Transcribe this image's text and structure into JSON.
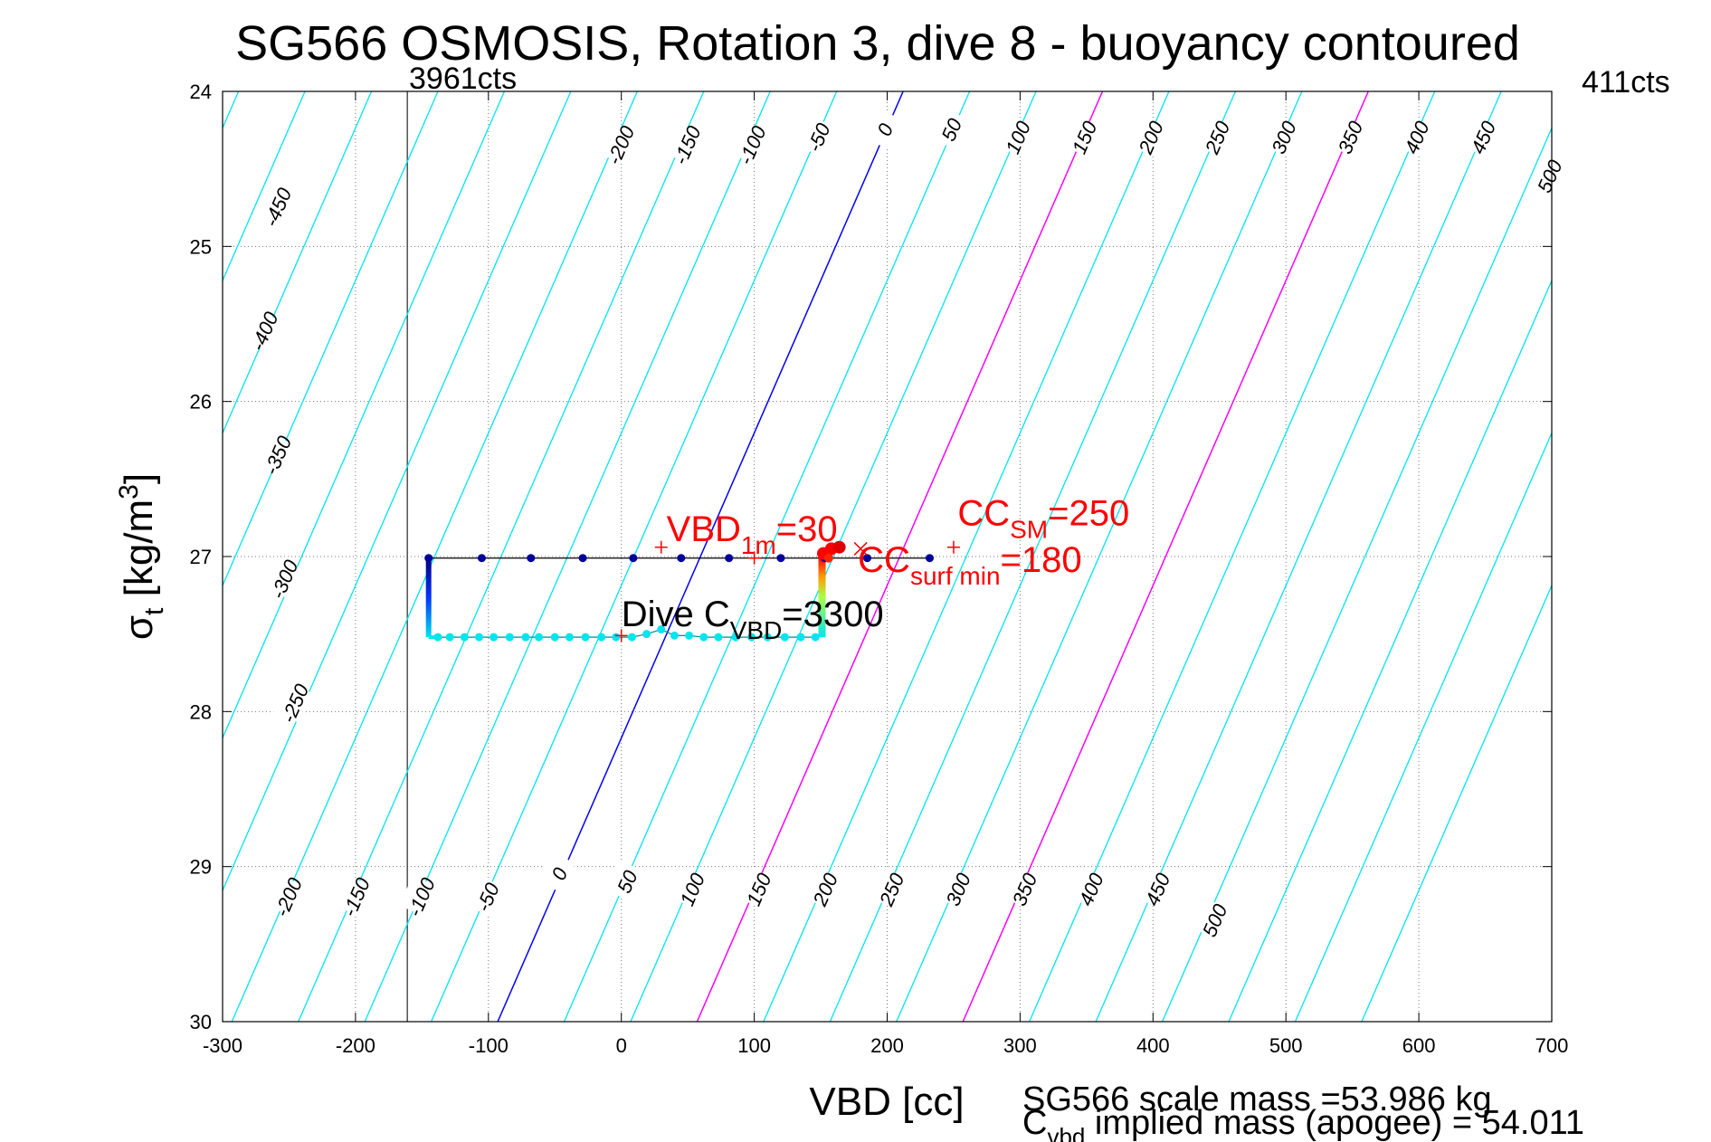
{
  "chart_data": {
    "type": "scatter",
    "title": "SG566 OSMOSIS, Rotation 3, dive 8 - buoyancy contoured",
    "xlabel": "VBD [cc]",
    "ylabel_main": "σ",
    "ylabel_sub": "t",
    "ylabel_units": " [kg/m",
    "ylabel_sup": "3",
    "ylabel_close": "]",
    "xlim": [
      -300,
      700
    ],
    "ylim": [
      24,
      30
    ],
    "y_reversed": true,
    "grid": "dotted",
    "x_ticks": [
      -300,
      -200,
      -100,
      0,
      100,
      200,
      300,
      400,
      500,
      600,
      700
    ],
    "y_ticks": [
      24,
      25,
      26,
      27,
      28,
      29,
      30
    ],
    "x_tick_labels": [
      "-300",
      "-200",
      "-100",
      "0",
      "100",
      "200",
      "300",
      "400",
      "500",
      "600",
      "700"
    ],
    "y_tick_labels": [
      "24",
      "25",
      "26",
      "27",
      "28",
      "29",
      "30"
    ],
    "limit_min_label": "3961cts",
    "limit_max_label": "411cts",
    "limit_min_vbd": -161,
    "contours": {
      "levels": [
        -500,
        -450,
        -400,
        -350,
        -300,
        -250,
        -200,
        -150,
        -100,
        -50,
        0,
        50,
        100,
        150,
        200,
        250,
        300,
        350,
        400,
        450,
        500,
        550,
        600,
        650
      ],
      "zero_level": 0,
      "zero_vbd_at_24": 212,
      "zero_vbd_at_30": -93,
      "level_spacing_vbd": 50,
      "colors": {
        "default": "#00e5ee",
        "zero": "#0000ff",
        "highlight": "#ff00ff"
      },
      "highlight_levels": [
        150,
        350
      ],
      "top_labels": [
        {
          "level": -450,
          "x": -260,
          "y": 24.8
        },
        {
          "level": -200,
          "x": -2,
          "y": 24.4
        },
        {
          "level": -150,
          "x": 48,
          "y": 24.4
        },
        {
          "level": -100,
          "x": 97,
          "y": 24.4
        },
        {
          "level": -50,
          "x": 147,
          "y": 24.35
        },
        {
          "level": 0,
          "x": 197,
          "y": 24.3
        },
        {
          "level": 50,
          "x": 247,
          "y": 24.3
        },
        {
          "level": 100,
          "x": 297,
          "y": 24.35
        },
        {
          "level": 150,
          "x": 347,
          "y": 24.35
        },
        {
          "level": 200,
          "x": 397,
          "y": 24.35
        },
        {
          "level": 250,
          "x": 447,
          "y": 24.35
        },
        {
          "level": 300,
          "x": 497,
          "y": 24.35
        },
        {
          "level": 350,
          "x": 547,
          "y": 24.35
        },
        {
          "level": 400,
          "x": 597,
          "y": 24.35
        },
        {
          "level": 450,
          "x": 647,
          "y": 24.35
        },
        {
          "level": 500,
          "x": 697,
          "y": 24.6
        },
        {
          "level": -400,
          "x": -270,
          "y": 25.6
        },
        {
          "level": -350,
          "x": -260,
          "y": 26.4
        },
        {
          "level": -300,
          "x": -255,
          "y": 27.2
        },
        {
          "level": -250,
          "x": -247,
          "y": 28.0
        }
      ],
      "bottom_labels": [
        {
          "level": -200,
          "x": -252,
          "y": 29.25
        },
        {
          "level": -150,
          "x": -201,
          "y": 29.25
        },
        {
          "level": -100,
          "x": -152,
          "y": 29.25
        },
        {
          "level": -50,
          "x": -102,
          "y": 29.25
        },
        {
          "level": 0,
          "x": -48,
          "y": 29.1
        },
        {
          "level": 50,
          "x": 3,
          "y": 29.15
        },
        {
          "level": 100,
          "x": 52,
          "y": 29.2
        },
        {
          "level": 150,
          "x": 102,
          "y": 29.2
        },
        {
          "level": 200,
          "x": 152,
          "y": 29.2
        },
        {
          "level": 250,
          "x": 202,
          "y": 29.2
        },
        {
          "level": 300,
          "x": 252,
          "y": 29.2
        },
        {
          "level": 350,
          "x": 302,
          "y": 29.2
        },
        {
          "level": 400,
          "x": 352,
          "y": 29.2
        },
        {
          "level": 450,
          "x": 402,
          "y": 29.2
        },
        {
          "level": 500,
          "x": 445,
          "y": 29.4
        }
      ]
    },
    "series": [
      {
        "name": "",
        "x": [
          -145,
          -105,
          -68,
          -29,
          9,
          45,
          81,
          120,
          153,
          185,
          232
        ],
        "y": [
          27.01,
          27.01,
          27.01,
          27.01,
          27.01,
          27.01,
          27.01,
          27.01,
          27.01,
          27.01,
          27.01
        ],
        "color": "#000099"
      },
      {
        "name": "",
        "x": [
          -138,
          -129,
          -118,
          -107,
          -96,
          -84,
          -72,
          -62,
          -50,
          -39,
          -27,
          -15,
          -4,
          8,
          19,
          30,
          40,
          51,
          62,
          73,
          86,
          98,
          110,
          123,
          135,
          146
        ],
        "y": [
          27.52,
          27.52,
          27.52,
          27.52,
          27.52,
          27.52,
          27.52,
          27.52,
          27.52,
          27.52,
          27.52,
          27.52,
          27.52,
          27.52,
          27.5,
          27.47,
          27.51,
          27.51,
          27.52,
          27.52,
          27.52,
          27.52,
          27.52,
          27.52,
          27.52,
          27.52
        ],
        "color": "#00e5ee"
      }
    ],
    "vertical_trace": {
      "x": -145,
      "y": [
        27.01,
        27.52
      ]
    },
    "right_trace": {
      "x": 151,
      "y": [
        27.0,
        27.52
      ]
    },
    "markers": [
      {
        "type": "plus",
        "x": 30,
        "y": 26.94,
        "color": "#ff0000"
      },
      {
        "type": "plus",
        "x": 250,
        "y": 26.94,
        "color": "#ff0000"
      },
      {
        "type": "cross",
        "x": 180,
        "y": 26.95,
        "color": "#ff0000"
      },
      {
        "type": "plus",
        "x": 100,
        "y": 27.01,
        "color": "#ff0000"
      },
      {
        "type": "plus",
        "x": 0,
        "y": 27.51,
        "color": "#ff0000"
      }
    ],
    "annotations": [
      {
        "id": "vbd1m",
        "main": "VBD",
        "sub": "1m",
        "tail": "=30",
        "x": 34,
        "y": 26.9,
        "color": "#ff0000"
      },
      {
        "id": "ccsm",
        "main": "CC",
        "sub": "SM",
        "tail": "=250",
        "x": 253,
        "y": 26.8,
        "color": "#ff0000"
      },
      {
        "id": "ccsurf",
        "main": "CC",
        "sub": "surf min",
        "tail": "=180",
        "x": 178,
        "y": 27.1,
        "color": "#ff0000"
      },
      {
        "id": "divec",
        "main": "Dive C",
        "sub": "VBD",
        "tail": "=3300",
        "x": 0,
        "y": 27.45,
        "color": "#000000"
      }
    ],
    "footer_line1": "SG566 scale mass =53.986 kg",
    "footer_line2_main": "C",
    "footer_line2_sub": "vbd",
    "footer_line2_tail": " implied mass (apogee) = 54.011"
  }
}
